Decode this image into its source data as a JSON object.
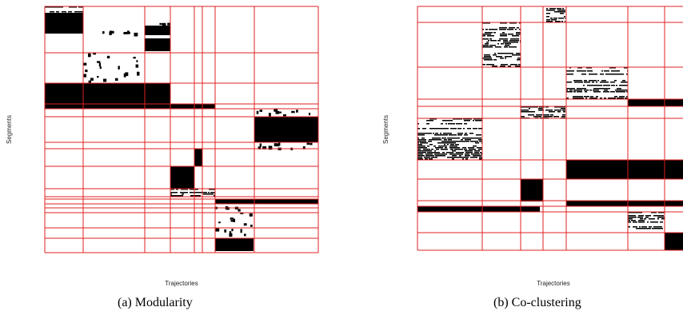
{
  "panels": [
    {
      "caption": "(a) Modularity",
      "xlabel": "Trajectories",
      "ylabel": "Segments"
    },
    {
      "caption": "(b) Co-clustering",
      "xlabel": "Trajectories",
      "ylabel": "Segments"
    }
  ],
  "colors": {
    "grid": "#e02020",
    "fill": "#000000",
    "background": "#ffffff"
  }
}
